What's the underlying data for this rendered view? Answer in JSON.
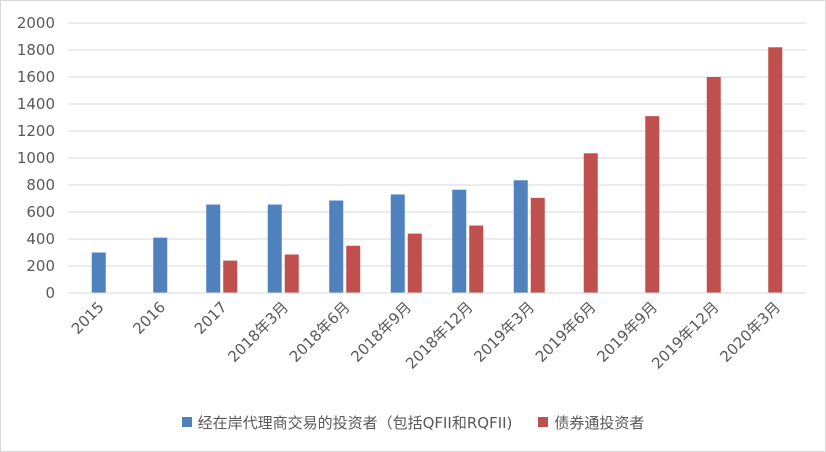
{
  "chart_data": {
    "type": "bar",
    "categories": [
      "2015",
      "2016",
      "2017",
      "2018年3月",
      "2018年6月",
      "2018年9月",
      "2018年12月",
      "2019年3月",
      "2019年6月",
      "2019年9月",
      "2019年12月",
      "2020年3月"
    ],
    "series": [
      {
        "name": "经在岸代理商交易的投资者（包括QFII和RQFII)",
        "color": "#4f81bd",
        "values": [
          300,
          410,
          655,
          655,
          685,
          730,
          765,
          835,
          null,
          null,
          null,
          null
        ]
      },
      {
        "name": "债券通投资者",
        "color": "#c0504d",
        "values": [
          null,
          null,
          240,
          285,
          350,
          440,
          500,
          705,
          1035,
          1310,
          1600,
          1820
        ]
      }
    ],
    "ylim": [
      0,
      2000
    ],
    "yticks": [
      "0",
      "200",
      "400",
      "600",
      "800",
      "1000",
      "1200",
      "1400",
      "1600",
      "1800",
      "2000"
    ],
    "grid": true,
    "legend_position": "bottom"
  }
}
